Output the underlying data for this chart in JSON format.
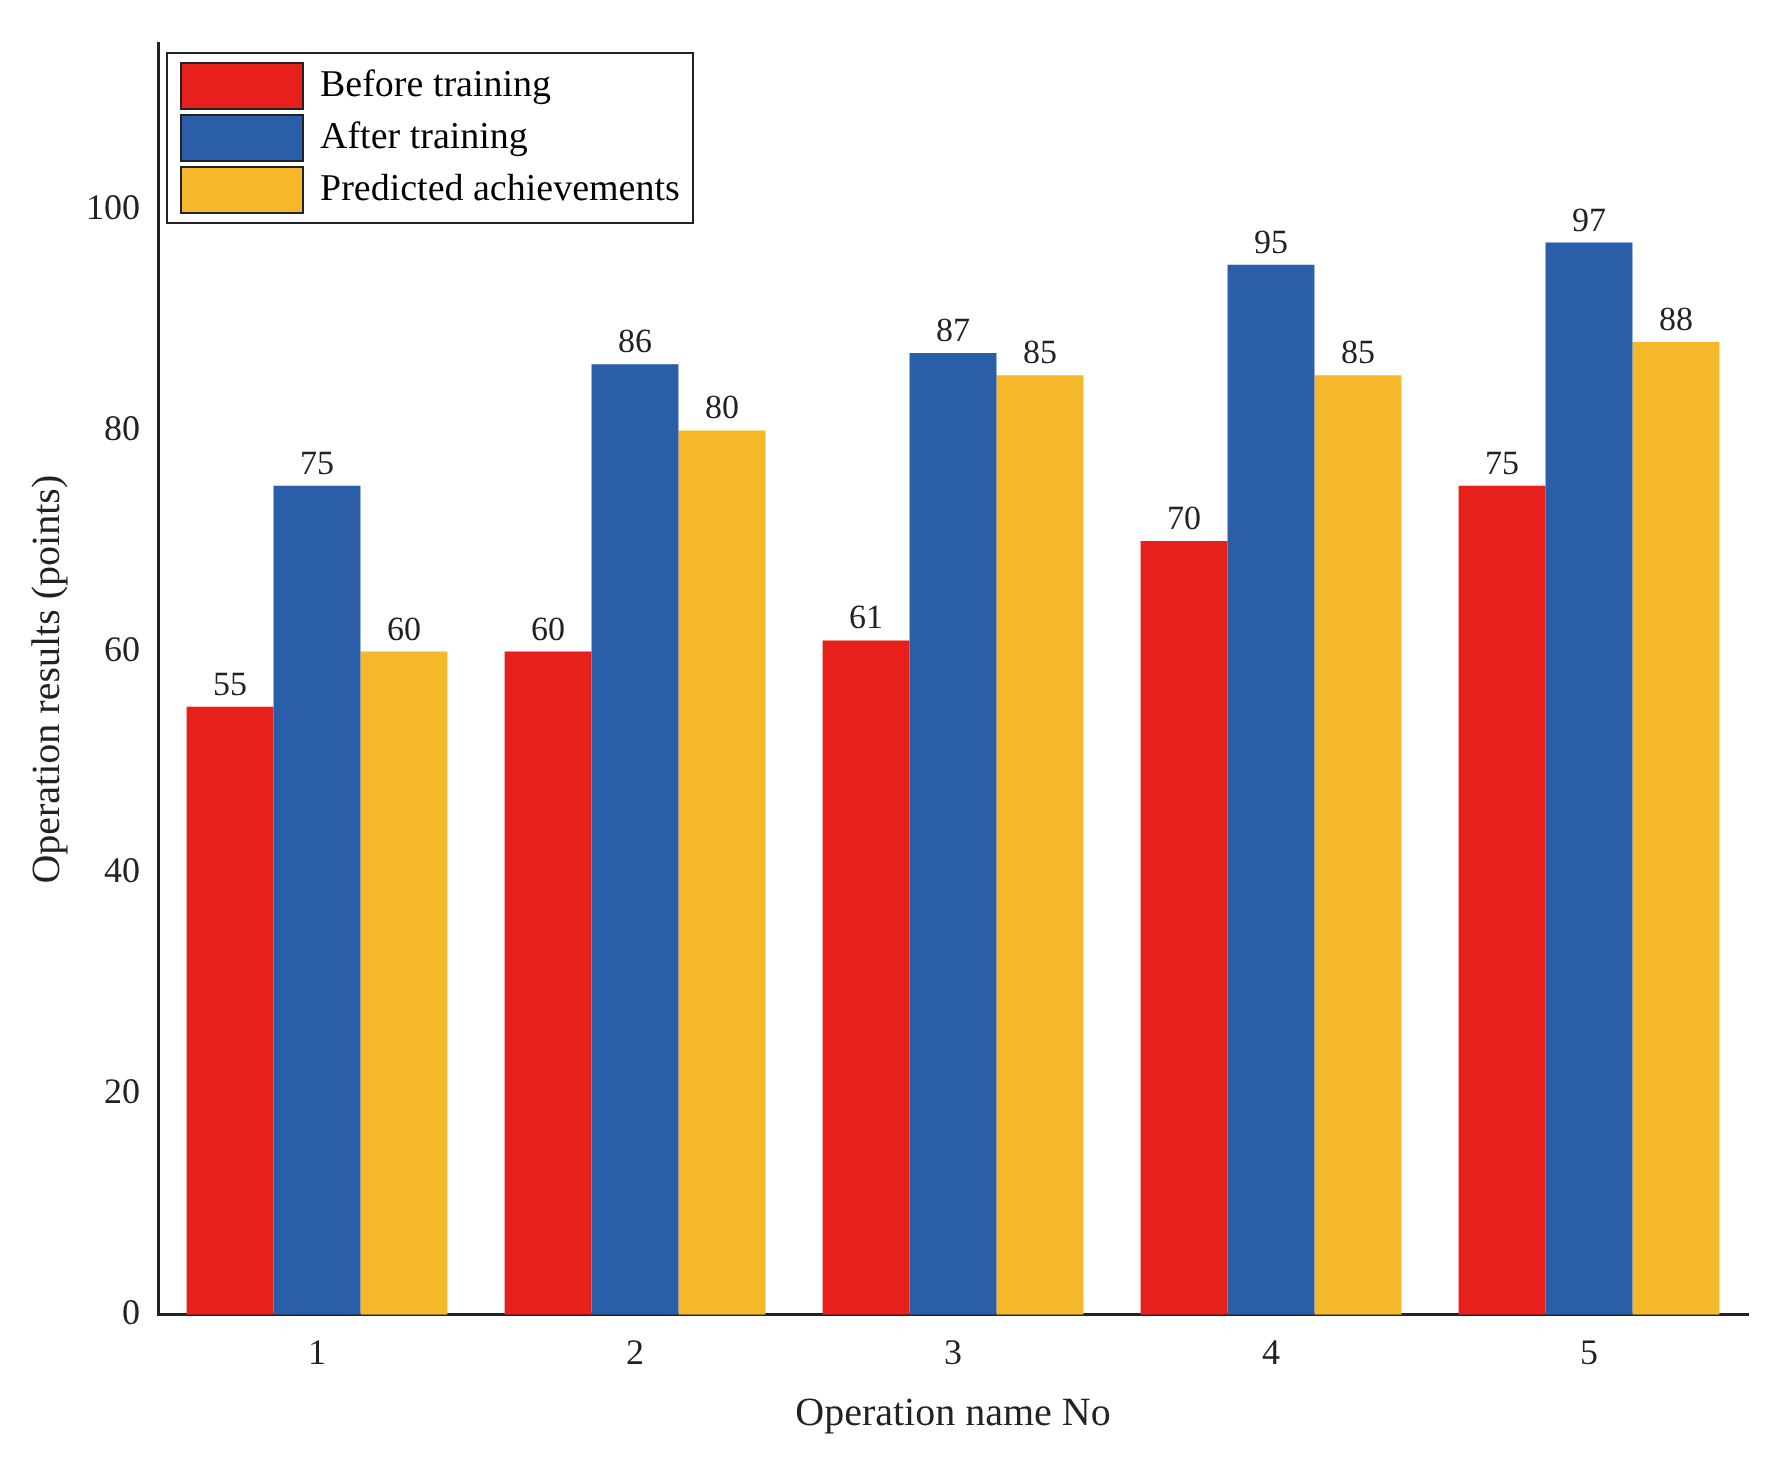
{
  "chart_data": {
    "type": "bar",
    "xlabel": "Operation name No",
    "ylabel": "Operation results (points)",
    "categories": [
      "1",
      "2",
      "3",
      "4",
      "5"
    ],
    "series": [
      {
        "name": "Before training",
        "color": "#e8201c",
        "values": [
          55,
          60,
          61,
          70,
          75
        ]
      },
      {
        "name": "After training",
        "color": "#2a5ea8",
        "values": [
          75,
          86,
          87,
          95,
          97
        ]
      },
      {
        "name": "Predicted achievements",
        "color": "#f5b82a",
        "values": [
          60,
          80,
          85,
          85,
          88
        ]
      }
    ],
    "ylim": [
      0,
      115
    ],
    "yticks": [
      0,
      20,
      40,
      60,
      80,
      100
    ],
    "grid": false,
    "legend": "top left",
    "data_labels": true
  }
}
